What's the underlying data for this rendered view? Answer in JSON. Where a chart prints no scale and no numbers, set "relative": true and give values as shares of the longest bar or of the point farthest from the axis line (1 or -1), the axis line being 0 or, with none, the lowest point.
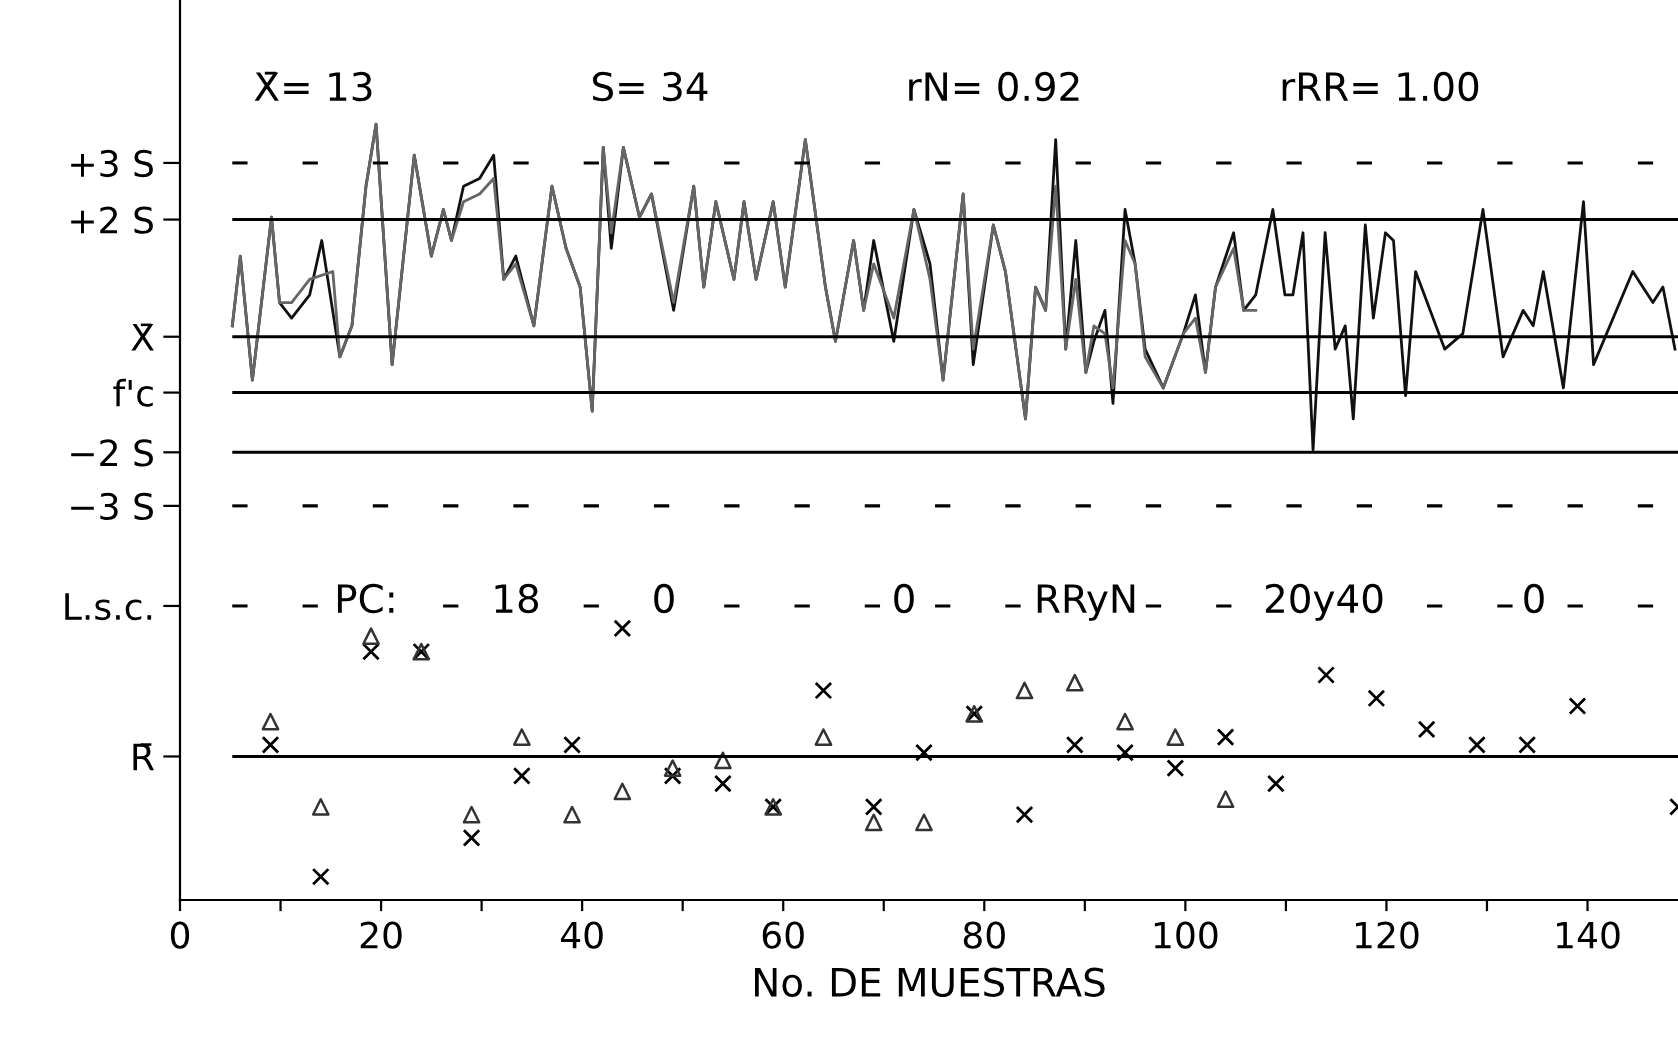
{
  "chart_data": {
    "type": "line",
    "relative": true,
    "xlabel": "No. DE MUESTRAS",
    "xlim": [
      0,
      149
    ],
    "xticks": [
      0,
      {
        "value": 10,
        "label": null
      },
      20,
      {
        "value": 30,
        "label": null
      },
      40,
      {
        "value": 50,
        "label": null
      },
      60,
      {
        "value": 70,
        "label": null
      },
      80,
      {
        "value": 90,
        "label": null
      },
      100,
      {
        "value": 110,
        "label": null
      },
      120,
      {
        "value": 130,
        "label": null
      },
      140
    ],
    "grid": false,
    "legend": false,
    "annotations": [
      "X̄= 13",
      "S= 34",
      "rN= 0.92",
      "rRR= 1.00",
      "PC:",
      "18",
      "0",
      "0",
      "RRyN",
      "20y40",
      "0"
    ],
    "ref_lines": [
      {
        "axis": "y",
        "value": 0.95,
        "label": "+3 S",
        "line_style": "dashed",
        "color": "#000000"
      },
      {
        "axis": "y",
        "value": 0.877,
        "label": "+2 S",
        "line_style": "solid",
        "color": "#000000"
      },
      {
        "axis": "y",
        "value": 0.726,
        "label": "X̄",
        "line_style": "solid",
        "color": "#000000"
      },
      {
        "axis": "y",
        "value": 0.654,
        "label": "f'c",
        "line_style": "solid",
        "color": "#000000"
      },
      {
        "axis": "y",
        "value": 0.577,
        "label": "−2 S",
        "line_style": "solid",
        "color": "#000000"
      },
      {
        "axis": "y",
        "value": 0.508,
        "label": "−3 S",
        "line_style": "dashed",
        "color": "#000000"
      },
      {
        "axis": "y",
        "value": 0.379,
        "label": "L.s.c.",
        "line_style": "dashed",
        "color": "#000000"
      },
      {
        "axis": "y",
        "value": 0.185,
        "label": "R̄",
        "line_style": "solid",
        "color": "#000000"
      }
    ],
    "series": [
      {
        "color": "#111111",
        "marker": "none",
        "x": [
          5.2,
          6.0,
          7.2,
          9.1,
          9.9,
          11.1,
          12.9,
          14.1,
          15.9,
          17.1,
          18.5,
          19.5,
          21.1,
          23.3,
          25.0,
          26.2,
          27.0,
          28.2,
          29.8,
          31.2,
          32.2,
          33.4,
          35.2,
          37.0,
          38.4,
          39.8,
          41.0,
          42.1,
          42.9,
          44.1,
          45.7,
          46.9,
          49.1,
          51.1,
          52.1,
          53.3,
          55.1,
          56.1,
          57.3,
          59.0,
          60.2,
          62.2,
          64.2,
          65.2,
          67.0,
          68.0,
          69.0,
          71.0,
          73.0,
          74.6,
          75.9,
          77.9,
          78.9,
          80.9,
          82.1,
          84.1,
          85.1,
          86.1,
          87.1,
          88.1,
          89.1,
          90.1,
          90.9,
          92.0,
          92.8,
          94.0,
          95.0,
          96.0,
          97.8,
          99.8,
          101.0,
          102.0,
          103.0,
          104.8,
          105.8,
          107.0,
          108.7,
          109.9,
          110.7,
          111.7,
          112.7,
          113.9,
          114.9,
          115.9,
          116.7,
          117.9,
          118.7,
          119.9,
          120.7,
          121.9,
          122.9,
          125.8,
          127.6,
          129.6,
          131.6,
          133.6,
          134.6,
          135.6,
          137.6,
          139.6,
          140.6,
          144.5,
          146.5,
          147.5,
          148.7
        ],
        "values": [
          0.74,
          0.83,
          0.67,
          0.88,
          0.77,
          0.75,
          0.78,
          0.85,
          0.7,
          0.74,
          0.92,
          1.0,
          0.69,
          0.96,
          0.83,
          0.89,
          0.85,
          0.92,
          0.93,
          0.96,
          0.8,
          0.83,
          0.74,
          0.92,
          0.84,
          0.79,
          0.63,
          0.97,
          0.84,
          0.97,
          0.88,
          0.91,
          0.76,
          0.92,
          0.79,
          0.9,
          0.8,
          0.9,
          0.8,
          0.9,
          0.79,
          0.98,
          0.79,
          0.72,
          0.85,
          0.76,
          0.85,
          0.72,
          0.89,
          0.82,
          0.67,
          0.91,
          0.69,
          0.87,
          0.81,
          0.62,
          0.79,
          0.76,
          0.98,
          0.71,
          0.85,
          0.68,
          0.72,
          0.76,
          0.64,
          0.89,
          0.82,
          0.71,
          0.66,
          0.73,
          0.78,
          0.68,
          0.79,
          0.86,
          0.76,
          0.78,
          0.89,
          0.78,
          0.78,
          0.86,
          0.58,
          0.86,
          0.71,
          0.74,
          0.62,
          0.87,
          0.75,
          0.86,
          0.85,
          0.65,
          0.81,
          0.71,
          0.73,
          0.89,
          0.7,
          0.76,
          0.74,
          0.81,
          0.66,
          0.9,
          0.69,
          0.81,
          0.77,
          0.79,
          0.71
        ]
      },
      {
        "color": "#666666",
        "marker": "none",
        "x": [
          5.2,
          6.0,
          7.2,
          9.1,
          9.9,
          11.1,
          12.9,
          15.2,
          15.9,
          17.1,
          18.5,
          19.5,
          21.1,
          23.3,
          25.0,
          26.2,
          27.0,
          28.2,
          29.8,
          31.2,
          32.2,
          33.4,
          35.2,
          37.0,
          38.4,
          39.8,
          41.0,
          42.1,
          42.9,
          44.1,
          45.7,
          46.9,
          49.1,
          51.1,
          52.1,
          53.3,
          55.1,
          56.1,
          57.3,
          59.0,
          60.2,
          62.2,
          64.2,
          65.2,
          67.0,
          68.0,
          69.0,
          71.0,
          73.0,
          74.6,
          75.9,
          77.9,
          78.9,
          80.9,
          82.1,
          84.1,
          85.1,
          86.1,
          87.1,
          88.1,
          89.1,
          90.1,
          90.9,
          92.0,
          92.8,
          94.0,
          95.0,
          96.0,
          97.8,
          99.8,
          101.0,
          102.0,
          103.0,
          104.8,
          105.8,
          107.0
        ],
        "values": [
          0.74,
          0.83,
          0.67,
          0.88,
          0.77,
          0.77,
          0.8,
          0.81,
          0.7,
          0.74,
          0.92,
          1.0,
          0.69,
          0.96,
          0.83,
          0.89,
          0.85,
          0.9,
          0.91,
          0.93,
          0.8,
          0.82,
          0.74,
          0.92,
          0.84,
          0.79,
          0.63,
          0.97,
          0.86,
          0.97,
          0.88,
          0.91,
          0.77,
          0.92,
          0.79,
          0.9,
          0.8,
          0.9,
          0.8,
          0.9,
          0.79,
          0.98,
          0.79,
          0.72,
          0.85,
          0.76,
          0.82,
          0.75,
          0.89,
          0.8,
          0.67,
          0.91,
          0.71,
          0.87,
          0.81,
          0.62,
          0.79,
          0.76,
          0.92,
          0.71,
          0.8,
          0.68,
          0.74,
          0.73,
          0.66,
          0.85,
          0.82,
          0.7,
          0.66,
          0.73,
          0.75,
          0.68,
          0.79,
          0.84,
          0.76,
          0.76
        ]
      },
      {
        "type": "scatter",
        "color": "#000000",
        "marker": "cross",
        "x": [
          9,
          14,
          19,
          24,
          29,
          34,
          39,
          44,
          49,
          54,
          59,
          64,
          69,
          74,
          79,
          84,
          89,
          94,
          99,
          104,
          109,
          114,
          119,
          124,
          129,
          134,
          139,
          149
        ],
        "values": [
          0.2,
          0.03,
          0.32,
          0.32,
          0.08,
          0.16,
          0.2,
          0.35,
          0.16,
          0.15,
          0.12,
          0.27,
          0.12,
          0.19,
          0.24,
          0.11,
          0.2,
          0.19,
          0.17,
          0.21,
          0.15,
          0.29,
          0.26,
          0.22,
          0.2,
          0.2,
          0.25,
          0.12
        ]
      },
      {
        "type": "scatter",
        "color": "#333333",
        "marker": "triangle",
        "x": [
          9,
          14,
          19,
          24,
          29,
          34,
          39,
          44,
          49,
          54,
          59,
          64,
          69,
          74,
          79,
          84,
          89,
          94,
          99,
          104
        ],
        "values": [
          0.23,
          0.12,
          0.34,
          0.32,
          0.11,
          0.21,
          0.11,
          0.14,
          0.17,
          0.18,
          0.12,
          0.21,
          0.1,
          0.1,
          0.24,
          0.27,
          0.28,
          0.23,
          0.21,
          0.13
        ]
      }
    ]
  }
}
